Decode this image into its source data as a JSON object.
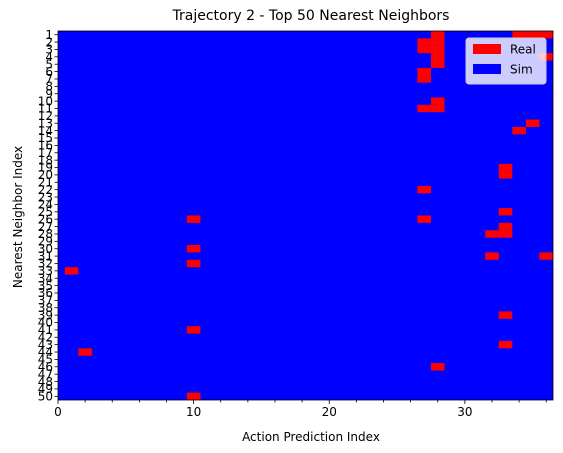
{
  "chart_data": {
    "type": "heatmap",
    "title": "Trajectory 2 - Top 50 Nearest Neighbors",
    "xlabel": "Action Prediction Index",
    "ylabel": "Nearest Neighbor Index",
    "xlim": [
      0,
      36.5
    ],
    "ylim": [
      1,
      50
    ],
    "x_ticks": [
      0,
      10,
      20,
      30
    ],
    "y_ticks": [
      1,
      2,
      3,
      4,
      5,
      6,
      7,
      8,
      9,
      10,
      11,
      12,
      13,
      14,
      15,
      16,
      17,
      18,
      19,
      20,
      21,
      22,
      23,
      24,
      25,
      26,
      27,
      28,
      29,
      30,
      31,
      32,
      33,
      34,
      35,
      36,
      37,
      38,
      39,
      40,
      41,
      42,
      43,
      44,
      45,
      46,
      47,
      48,
      49,
      50
    ],
    "categories": [
      "Real",
      "Sim"
    ],
    "background_category": "Sim",
    "colors": {
      "Real": "#ff0000",
      "Sim": "#0000ff"
    },
    "legend": {
      "position": "top-right",
      "entries": [
        "Real",
        "Sim"
      ]
    },
    "real_cells": [
      {
        "row": 1,
        "cols": [
          28,
          34,
          35,
          36
        ]
      },
      {
        "row": 2,
        "cols": [
          27,
          28
        ]
      },
      {
        "row": 3,
        "cols": [
          27,
          28
        ]
      },
      {
        "row": 4,
        "cols": [
          28,
          36
        ]
      },
      {
        "row": 5,
        "cols": [
          28
        ]
      },
      {
        "row": 6,
        "cols": [
          27
        ]
      },
      {
        "row": 7,
        "cols": [
          27
        ]
      },
      {
        "row": 10,
        "cols": [
          28
        ]
      },
      {
        "row": 11,
        "cols": [
          27,
          28
        ]
      },
      {
        "row": 13,
        "cols": [
          35
        ]
      },
      {
        "row": 14,
        "cols": [
          34
        ]
      },
      {
        "row": 19,
        "cols": [
          33
        ]
      },
      {
        "row": 20,
        "cols": [
          33
        ]
      },
      {
        "row": 22,
        "cols": [
          27
        ]
      },
      {
        "row": 25,
        "cols": [
          33
        ]
      },
      {
        "row": 26,
        "cols": [
          10,
          27
        ]
      },
      {
        "row": 27,
        "cols": [
          33
        ]
      },
      {
        "row": 28,
        "cols": [
          32,
          33
        ]
      },
      {
        "row": 30,
        "cols": [
          10
        ]
      },
      {
        "row": 31,
        "cols": [
          32,
          36
        ]
      },
      {
        "row": 32,
        "cols": [
          10
        ]
      },
      {
        "row": 33,
        "cols": [
          1
        ]
      },
      {
        "row": 39,
        "cols": [
          33
        ]
      },
      {
        "row": 41,
        "cols": [
          10
        ]
      },
      {
        "row": 43,
        "cols": [
          33
        ]
      },
      {
        "row": 44,
        "cols": [
          2
        ]
      },
      {
        "row": 46,
        "cols": [
          28
        ]
      },
      {
        "row": 50,
        "cols": [
          10
        ]
      }
    ]
  }
}
